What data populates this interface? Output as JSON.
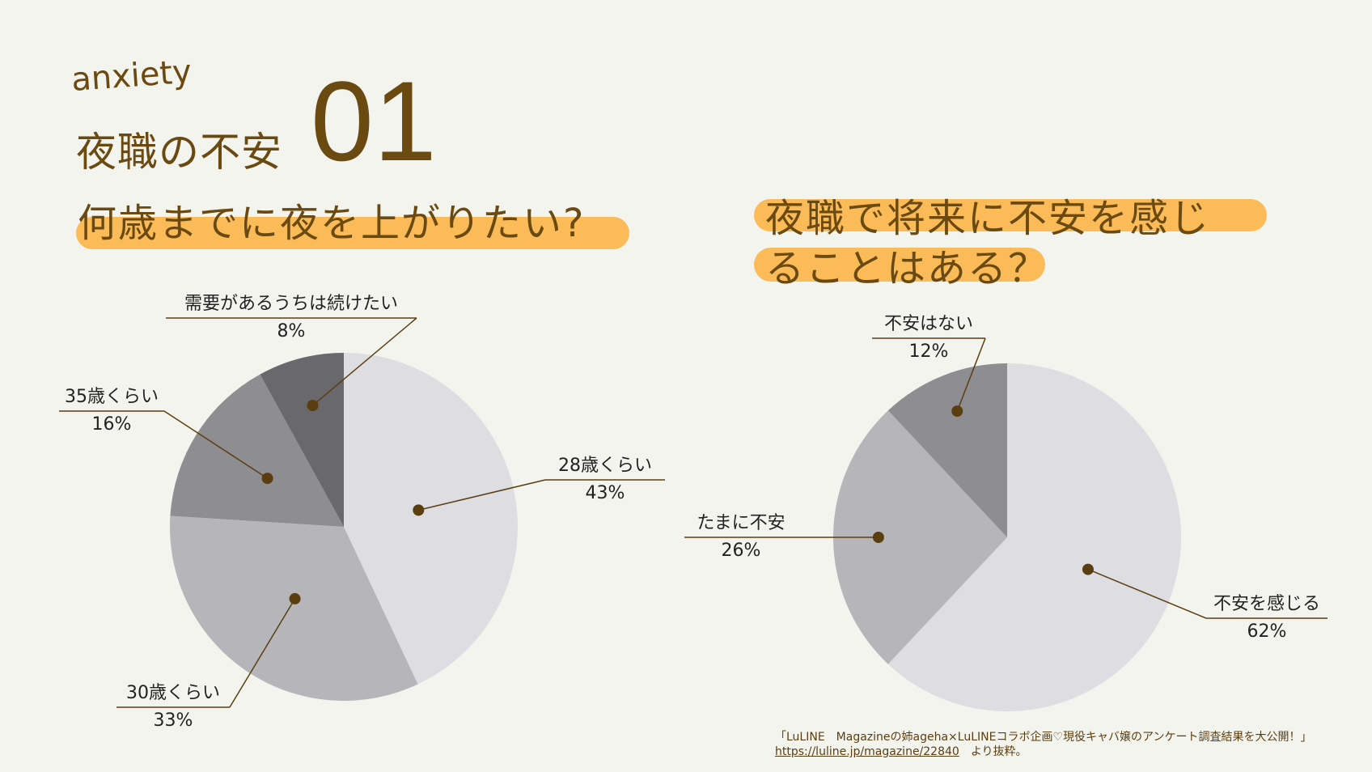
{
  "header": {
    "anxiety": "anxiety",
    "subtitle": "夜職の不安",
    "number": "01"
  },
  "chart_data": [
    {
      "type": "pie",
      "title": "何歳までに夜を上がりたい?",
      "slices": [
        {
          "label": "28歳くらい",
          "value": 43,
          "value_label": "43%",
          "color": "#dedee2"
        },
        {
          "label": "30歳くらい",
          "value": 33,
          "value_label": "33%",
          "color": "#b6b5ba"
        },
        {
          "label": "35歳くらい",
          "value": 16,
          "value_label": "16%",
          "color": "#8e8d91"
        },
        {
          "label": "需要があるうちは続けたい",
          "value": 8,
          "value_label": "8%",
          "color": "#69686c"
        }
      ]
    },
    {
      "type": "pie",
      "title_line1": "夜職で将来に不安を感じ",
      "title_line2": "ることはある？",
      "slices": [
        {
          "label": "不安を感じる",
          "value": 62,
          "value_label": "62%",
          "color": "#dedee2"
        },
        {
          "label": "たまに不安",
          "value": 26,
          "value_label": "26%",
          "color": "#b6b5ba"
        },
        {
          "label": "不安はない",
          "value": 12,
          "value_label": "12%",
          "color": "#8e8d91"
        }
      ]
    }
  ],
  "source": {
    "line1": "「LuLINE　Magazineの姉ageha×LuLINEコラボ企画♡現役キャバ嬢のアンケート調査結果を大公開！」",
    "link": "https://luline.jp/magazine/22840",
    "suffix": "　より抜粋。"
  },
  "colors": {
    "accent": "#fbbb58",
    "brand": "#6b4a12",
    "leader": "#5a3e10"
  }
}
